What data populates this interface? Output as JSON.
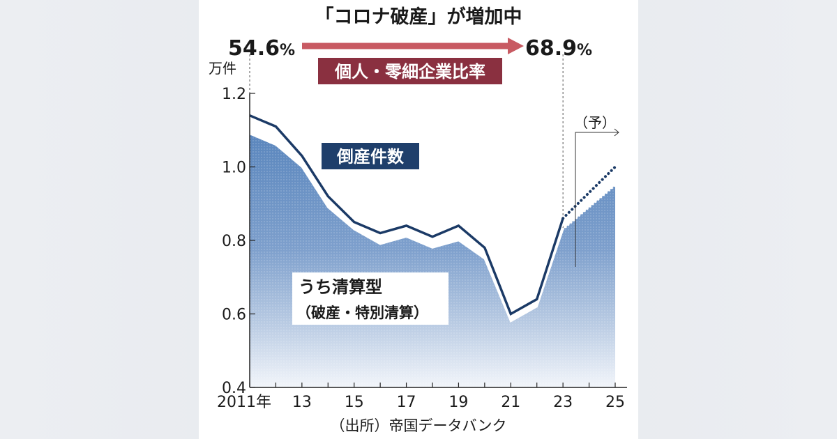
{
  "chart_data": {
    "type": "area",
    "title": "「コロナ破産」が増加中",
    "ratio": {
      "label": "個人・零細企業比率",
      "start": "54.6",
      "end": "68.9",
      "unit": "%"
    },
    "y_unit": "万件",
    "ylim": [
      0.4,
      1.2
    ],
    "y_ticks": [
      "0.4",
      "0.6",
      "0.8",
      "1.0",
      "1.2"
    ],
    "x_range": [
      2011,
      2025
    ],
    "x_tick_labels": [
      {
        "x": 2011,
        "label": "2011年"
      },
      {
        "x": 2013,
        "label": "13"
      },
      {
        "x": 2015,
        "label": "15"
      },
      {
        "x": 2017,
        "label": "17"
      },
      {
        "x": 2019,
        "label": "19"
      },
      {
        "x": 2021,
        "label": "21"
      },
      {
        "x": 2023,
        "label": "23"
      },
      {
        "x": 2025,
        "label": "25"
      }
    ],
    "forecast_label": "（予）",
    "forecast_start": 2023,
    "series": [
      {
        "name": "倒産件数",
        "color": "#1b3a66",
        "x": [
          2011,
          2012,
          2013,
          2014,
          2015,
          2016,
          2017,
          2018,
          2019,
          2020,
          2021,
          2022,
          2023
        ],
        "values": [
          1.14,
          1.11,
          1.03,
          0.92,
          0.85,
          0.82,
          0.84,
          0.81,
          0.84,
          0.78,
          0.6,
          0.64,
          0.86
        ],
        "forecast": {
          "x": [
            2023,
            2025
          ],
          "values": [
            0.86,
            1.0
          ]
        }
      },
      {
        "name": "うち清算型",
        "name_sub": "（破産・特別清算）",
        "color": "#3a6ba8",
        "x": [
          2011,
          2012,
          2013,
          2014,
          2015,
          2016,
          2017,
          2018,
          2019,
          2020,
          2021,
          2022,
          2023
        ],
        "values": [
          1.09,
          1.06,
          1.0,
          0.89,
          0.83,
          0.79,
          0.81,
          0.78,
          0.8,
          0.75,
          0.58,
          0.62,
          0.83
        ],
        "forecast": {
          "x": [
            2023,
            2025
          ],
          "values": [
            0.83,
            0.95
          ]
        }
      }
    ],
    "source": "（出所）帝国データバンク"
  },
  "colors": {
    "arrow": "#c85a62",
    "ratio_box": "#8a3040",
    "total_box": "#1f3f6b",
    "total_line": "#1b3a66",
    "area_fill": "#3a6ba8"
  }
}
